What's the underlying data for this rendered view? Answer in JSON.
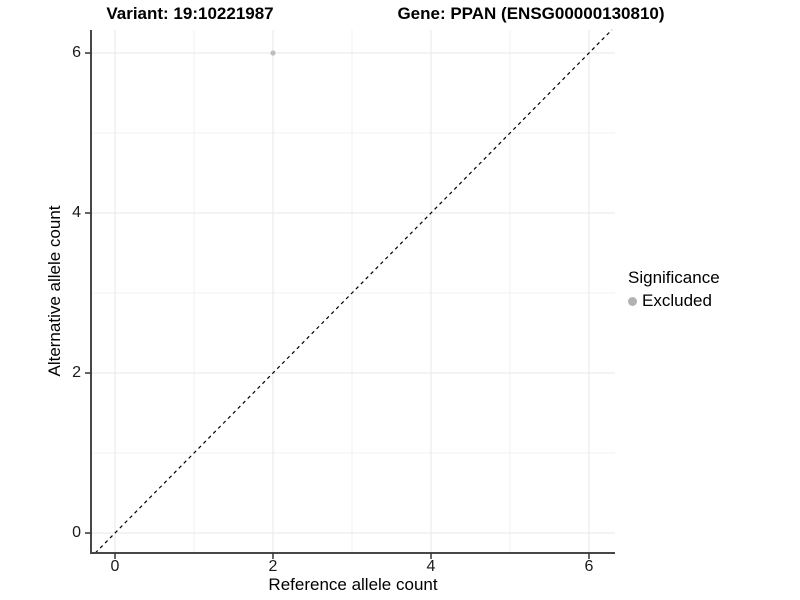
{
  "chart_data": {
    "type": "scatter",
    "title_left": "Variant: 19:10221987",
    "title_right": "Gene: PPAN (ENSG00000130810)",
    "xlabel": "Reference allele count",
    "ylabel": "Alternative allele count",
    "xlim": [
      -0.3,
      6.33
    ],
    "ylim": [
      -0.25,
      6.29
    ],
    "x_ticks": [
      "0",
      "2",
      "4",
      "6"
    ],
    "y_ticks": [
      "0",
      "2",
      "4",
      "6"
    ],
    "x_tick_values": [
      0,
      2,
      4,
      6
    ],
    "y_tick_values": [
      0,
      2,
      4,
      6
    ],
    "x_minor_values": [
      1,
      3,
      5
    ],
    "y_minor_values": [
      1,
      3,
      5
    ],
    "grid": true,
    "series": [
      {
        "name": "Excluded",
        "color": "#bebebe",
        "points": [
          {
            "x": 2,
            "y": 6
          }
        ]
      }
    ],
    "reference_line": {
      "type": "identity",
      "style": "dashed",
      "color": "#000000"
    },
    "legend": {
      "title": "Significance",
      "position": "right",
      "items": [
        {
          "label": "Excluded",
          "color": "#b2b2b2",
          "marker": "circle"
        }
      ]
    },
    "colors": {
      "background": "#ffffff",
      "grid_major": "#e7e7e7",
      "grid_minor": "#f0f0f0",
      "axis_line": "#474747",
      "tick_mark": "#333333",
      "tick_text": "#1a1a1a",
      "title_text": "#000000"
    }
  }
}
